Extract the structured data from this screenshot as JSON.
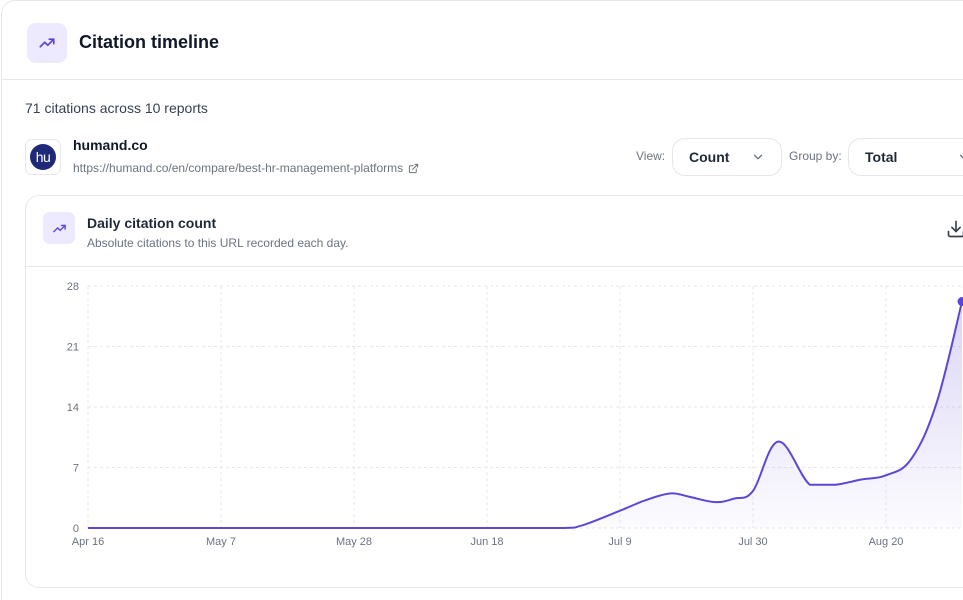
{
  "header": {
    "title": "Citation timeline",
    "icon": "trending-up-icon"
  },
  "summary": "71 citations across 10 reports",
  "source": {
    "favicon_text": "hu",
    "domain": "humand.co",
    "url": "https://humand.co/en/compare/best-hr-management-platforms"
  },
  "controls": {
    "view_label": "View:",
    "view_value": "Count",
    "group_label": "Group by:",
    "group_value": "Total"
  },
  "card": {
    "title": "Daily citation count",
    "subtitle": "Absolute citations to this URL recorded each day."
  },
  "colors": {
    "accent": "#5b47d6",
    "accent_bg": "#ede9fe",
    "brand_favicon": "#1e2a78"
  },
  "chart_data": {
    "type": "area",
    "x_tick_labels": [
      "Apr 16",
      "May 7",
      "May 28",
      "Jun 18",
      "Jul 9",
      "Jul 30",
      "Aug 20"
    ],
    "y_tick_labels": [
      "0",
      "7",
      "14",
      "21",
      "28"
    ],
    "ylim": [
      0,
      28
    ],
    "grid": true,
    "series": [
      {
        "x": [
          "2024-04-16",
          "2024-05-07",
          "2024-05-28",
          "2024-06-18",
          "2024-06-30",
          "2024-07-03",
          "2024-07-09",
          "2024-07-13",
          "2024-07-17",
          "2024-07-20",
          "2024-07-24",
          "2024-07-27",
          "2024-07-30",
          "2024-08-03",
          "2024-08-08",
          "2024-08-12",
          "2024-08-16",
          "2024-08-20",
          "2024-08-24",
          "2024-08-28",
          "2024-09-01"
        ],
        "y": [
          0,
          0,
          0,
          0,
          0,
          0.3,
          2.0,
          3.2,
          4.0,
          3.6,
          3.0,
          3.4,
          4.3,
          10.0,
          5.0,
          5.0,
          5.6,
          6.1,
          8.0,
          14.5,
          26.2
        ]
      }
    ]
  }
}
